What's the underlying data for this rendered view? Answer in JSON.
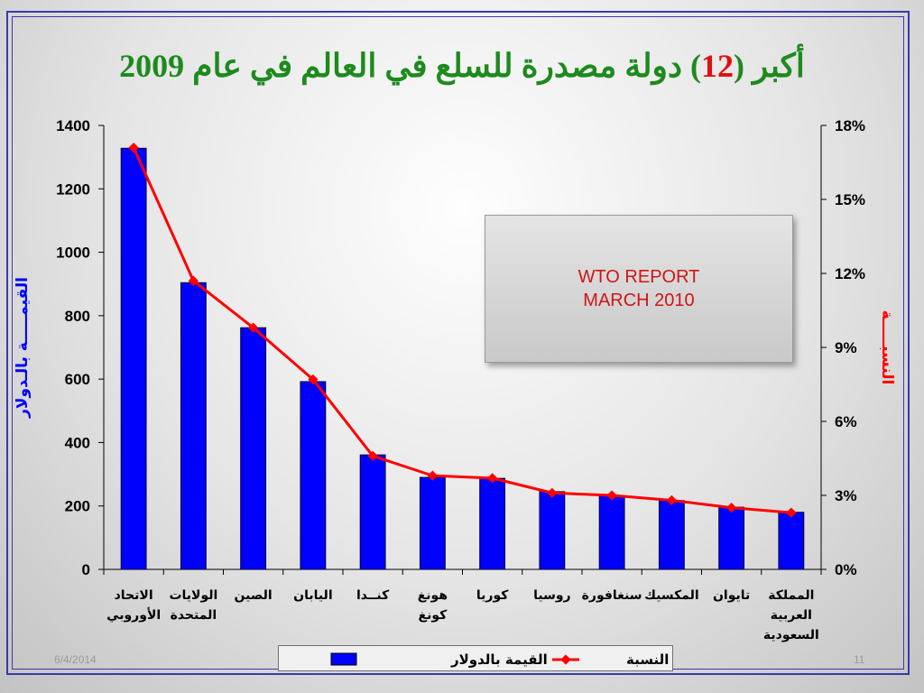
{
  "slide": {
    "title_prefix": "أكبر (",
    "title_number": "12",
    "title_suffix": ") دولة مصدرة للسلع في العالم في عام 2009",
    "date": "6/4/2014",
    "page": "11"
  },
  "note": {
    "line1": "WTO REPORT",
    "line2": "MARCH 2010"
  },
  "colors": {
    "bar": "#0000ff",
    "line": "#ff0000",
    "title": "#1e8a1e",
    "title_number": "#e01010",
    "left_axis_label": "#0000ff",
    "right_axis_label": "#ff0000"
  },
  "chart_data": {
    "type": "bar",
    "title": "أكبر (12) دولة مصدرة للسلع في العالم في عام 2009",
    "categories": [
      "الاتحاد الأوروبي",
      "الولايات المتحدة",
      "الصين",
      "اليابان",
      "كنــدا",
      "هونغ كونغ",
      "كوريا",
      "روسيا",
      "سنغافورة",
      "المكسيك",
      "تايوان",
      "المملكة العربية السعودية"
    ],
    "category_lines": [
      [
        "الاتحاد",
        "الأوروبي"
      ],
      [
        "الولايات",
        "المتحدة"
      ],
      [
        "الصين"
      ],
      [
        "اليابان"
      ],
      [
        "كنــدا"
      ],
      [
        "هونغ",
        "كونغ"
      ],
      [
        "كوريا"
      ],
      [
        "روسيا"
      ],
      [
        "سنغافورة"
      ],
      [
        "المكسيك"
      ],
      [
        "تايوان"
      ],
      [
        "المملكة",
        "العربية",
        "السعودية"
      ]
    ],
    "series": [
      {
        "name": "القيمة بالدولار",
        "type": "bar",
        "axis": "left",
        "values": [
          1328,
          904,
          762,
          592,
          361,
          290,
          287,
          245,
          232,
          217,
          196,
          180
        ]
      },
      {
        "name": "النسبة",
        "type": "line",
        "axis": "right",
        "values": [
          17.1,
          11.7,
          9.8,
          7.7,
          4.6,
          3.8,
          3.7,
          3.1,
          3.0,
          2.8,
          2.5,
          2.3
        ]
      }
    ],
    "ylabel": "القيمـــــة بالـدولار",
    "y2label": "النسبـــــة",
    "ylim": [
      0,
      1400
    ],
    "yticks": [
      0,
      200,
      400,
      600,
      800,
      1000,
      1200,
      1400
    ],
    "y2lim": [
      0,
      18
    ],
    "y2ticks": [
      0,
      3,
      6,
      9,
      12,
      15,
      18
    ],
    "y2tick_labels": [
      "0%",
      "3%",
      "6%",
      "9%",
      "12%",
      "15%",
      "18%"
    ],
    "grid": false,
    "legend_position": "bottom"
  }
}
